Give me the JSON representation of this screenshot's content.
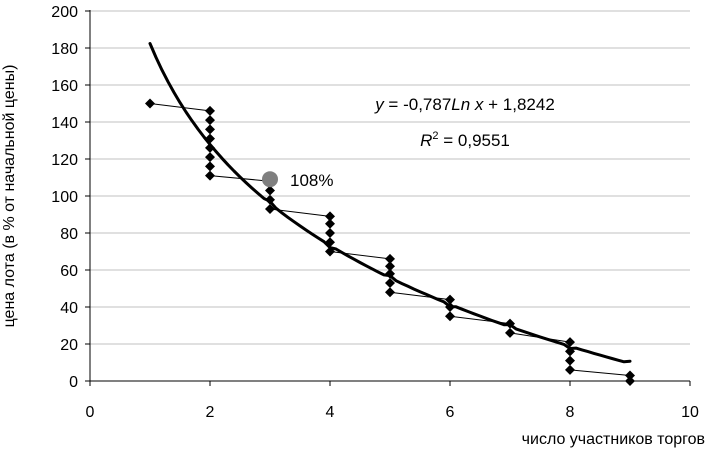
{
  "chart_data": {
    "type": "scatter",
    "xlabel": "число участников торгов",
    "ylabel": "цена лота (в % от начальной цены)",
    "xlim": [
      0,
      10
    ],
    "ylim": [
      0,
      200
    ],
    "xticks": [
      0,
      2,
      4,
      6,
      8,
      10
    ],
    "yticks": [
      0,
      20,
      40,
      60,
      80,
      100,
      120,
      140,
      160,
      180,
      200
    ],
    "grid": "horizontal",
    "series": [
      {
        "points": [
          [
            1,
            150
          ],
          [
            2,
            146
          ],
          [
            2,
            141
          ],
          [
            2,
            136
          ],
          [
            2,
            131
          ],
          [
            2,
            126
          ],
          [
            2,
            121
          ],
          [
            2,
            116
          ],
          [
            2,
            111
          ],
          [
            3,
            108
          ],
          [
            3,
            103
          ],
          [
            3,
            98
          ],
          [
            3,
            93
          ],
          [
            4,
            89
          ],
          [
            4,
            85
          ],
          [
            4,
            80
          ],
          [
            4,
            75
          ],
          [
            4,
            70
          ],
          [
            5,
            66
          ],
          [
            5,
            62
          ],
          [
            5,
            58
          ],
          [
            5,
            53
          ],
          [
            5,
            48
          ],
          [
            6,
            44
          ],
          [
            6,
            40
          ],
          [
            6,
            35
          ],
          [
            7,
            31
          ],
          [
            7,
            26
          ],
          [
            8,
            21
          ],
          [
            8,
            16
          ],
          [
            8,
            11
          ],
          [
            8,
            6
          ],
          [
            9,
            3
          ],
          [
            9,
            0
          ]
        ],
        "connectors": [
          [
            [
              1,
              150
            ],
            [
              2,
              146
            ]
          ],
          [
            [
              2,
              111
            ],
            [
              3,
              108
            ]
          ],
          [
            [
              3,
              93
            ],
            [
              4,
              89
            ]
          ],
          [
            [
              4,
              70
            ],
            [
              5,
              66
            ]
          ],
          [
            [
              5,
              48
            ],
            [
              6,
              44
            ]
          ],
          [
            [
              6,
              35
            ],
            [
              7,
              31
            ]
          ],
          [
            [
              7,
              26
            ],
            [
              8,
              21
            ]
          ],
          [
            [
              8,
              6
            ],
            [
              9,
              3
            ]
          ]
        ]
      }
    ],
    "highlight": {
      "x": 3,
      "y": 108,
      "label": "108%"
    },
    "trendline": {
      "a": -78.7,
      "b": 182.42,
      "x_from": 1,
      "x_to": 9,
      "equation": "y = -0,787Ln x + 1,8242",
      "r2": "R2 = 0,9551"
    }
  }
}
